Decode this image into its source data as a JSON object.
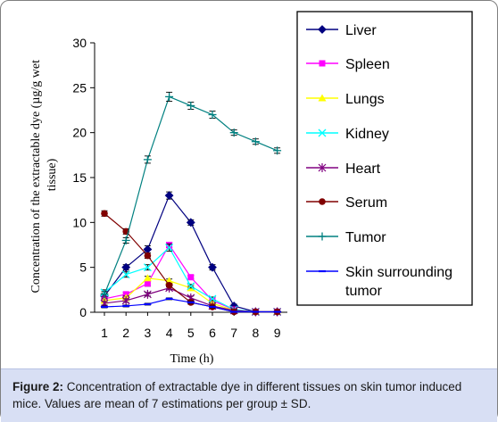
{
  "chart_data": {
    "type": "line",
    "x": [
      1,
      2,
      3,
      4,
      5,
      6,
      7,
      8,
      9
    ],
    "xlabel": "Time (h)",
    "ylabel_lines": [
      "Concentration of the extractable dye (µg/g wet",
      "tissue)"
    ],
    "ylim": [
      0,
      30
    ],
    "yticks": [
      0,
      5,
      10,
      15,
      20,
      25,
      30
    ],
    "xticks": [
      1,
      2,
      3,
      4,
      5,
      6,
      7,
      8,
      9
    ],
    "legend_position": "right",
    "series": [
      {
        "name": "Liver",
        "color": "#000080",
        "marker": "diamond",
        "values": [
          1.8,
          5.0,
          7.0,
          13.0,
          10.0,
          5.0,
          0.7,
          0.05,
          0.05
        ],
        "err": [
          0.3,
          0.3,
          0.4,
          0.4,
          0.3,
          0.3,
          0.2,
          0.05,
          0.05
        ]
      },
      {
        "name": "Spleen",
        "color": "#ff00ff",
        "marker": "square",
        "values": [
          1.5,
          2.0,
          3.2,
          7.5,
          3.9,
          1.3,
          0.3,
          0.05,
          0.05
        ],
        "err": [
          0.2,
          0.2,
          0.3,
          0.3,
          0.2,
          0.2,
          0.1,
          0.05,
          0.05
        ]
      },
      {
        "name": "Lungs",
        "color": "#ffff00",
        "marker": "triangle",
        "values": [
          1.3,
          1.6,
          3.8,
          3.5,
          2.7,
          1.0,
          0.2,
          0.05,
          0.05
        ],
        "err": [
          0.2,
          0.2,
          0.2,
          0.2,
          0.2,
          0.1,
          0.1,
          0.05,
          0.05
        ]
      },
      {
        "name": "Kidney",
        "color": "#00ffff",
        "marker": "x",
        "values": [
          2.2,
          4.2,
          5.0,
          7.2,
          2.9,
          1.5,
          0.3,
          0.05,
          0.05
        ],
        "err": [
          0.3,
          0.3,
          0.3,
          0.4,
          0.2,
          0.2,
          0.1,
          0.05,
          0.05
        ]
      },
      {
        "name": "Heart",
        "color": "#800080",
        "marker": "star",
        "values": [
          1.0,
          1.3,
          2.0,
          2.7,
          1.6,
          0.7,
          0.2,
          0.05,
          0.05
        ],
        "err": [
          0.2,
          0.2,
          0.2,
          0.2,
          0.2,
          0.1,
          0.1,
          0.05,
          0.05
        ]
      },
      {
        "name": "Serum",
        "color": "#800000",
        "marker": "circle",
        "values": [
          11.0,
          9.0,
          6.3,
          3.0,
          1.1,
          0.6,
          0.05,
          0.05,
          0.05
        ],
        "err": [
          0.3,
          0.3,
          0.3,
          0.2,
          0.2,
          0.1,
          0.05,
          0.05,
          0.05
        ]
      },
      {
        "name": "Tumor",
        "color": "#008080",
        "marker": "plus",
        "values": [
          2.0,
          8.0,
          17.0,
          24.0,
          23.0,
          22.0,
          20.0,
          19.0,
          18.0
        ],
        "err": [
          0.3,
          0.3,
          0.4,
          0.5,
          0.4,
          0.4,
          0.3,
          0.3,
          0.3
        ]
      },
      {
        "name": "Skin surrounding tumor",
        "color": "#0000ff",
        "marker": "dash",
        "values": [
          0.6,
          0.7,
          0.9,
          1.5,
          1.1,
          0.6,
          0.05,
          0.05,
          0.05
        ],
        "err": [
          0.1,
          0.1,
          0.1,
          0.1,
          0.1,
          0.1,
          0.05,
          0.05,
          0.05
        ]
      }
    ]
  },
  "caption": {
    "label": "Figure 2:",
    "text": " Concentration of extractable dye in different tissues on skin tumor induced mice. Values are mean of 7 estimations per group ± SD."
  }
}
